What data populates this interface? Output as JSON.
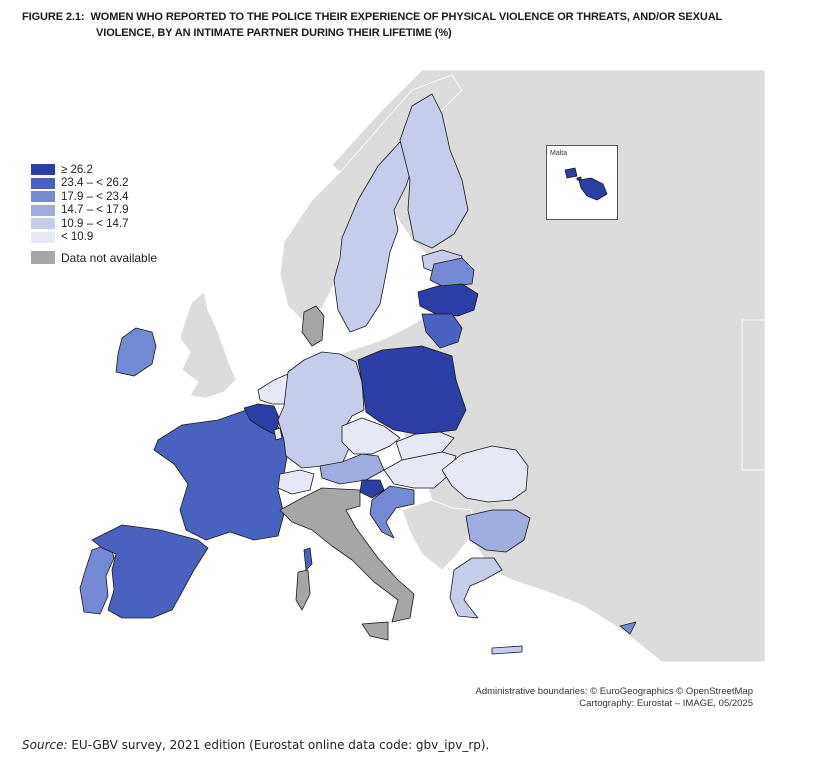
{
  "title": {
    "number": "FIGURE 2.1:",
    "line1": "WOMEN WHO REPORTED TO THE POLICE THEIR EXPERIENCE OF PHYSICAL VIOLENCE OR THREATS, AND/OR SEXUAL",
    "line2": "VIOLENCE, BY AN INTIMATE PARTNER DURING THEIR LIFETIME (%)"
  },
  "legend": {
    "classes": [
      {
        "label": "≥ 26.2",
        "color": "#2a3ea6"
      },
      {
        "label": "23.4 – < 26.2",
        "color": "#4a62bf"
      },
      {
        "label": "17.9 – < 23.4",
        "color": "#7489d4"
      },
      {
        "label": "14.7 – < 17.9",
        "color": "#9eacdf"
      },
      {
        "label": "10.9 – < 14.7",
        "color": "#c6cdeb"
      },
      {
        "label": "< 10.9",
        "color": "#e6e9f5"
      }
    ],
    "not_available": {
      "label": "Data not available",
      "color": "#a6a6a6"
    }
  },
  "map_colors": {
    "background_land": "#dcdcdc",
    "sea": "#ffffff",
    "border": "#1a1a1a"
  },
  "inset": {
    "label": "Malta"
  },
  "credits": {
    "line1": "Administrative boundaries: © EuroGeographics © OpenStreetMap",
    "line2": "Cartography: Eurostat – IMAGE, 05/2025"
  },
  "source": {
    "label": "Source:",
    "text": " EU-GBV survey, 2021 edition (Eurostat online data code: gbv_ipv_rp)."
  }
}
